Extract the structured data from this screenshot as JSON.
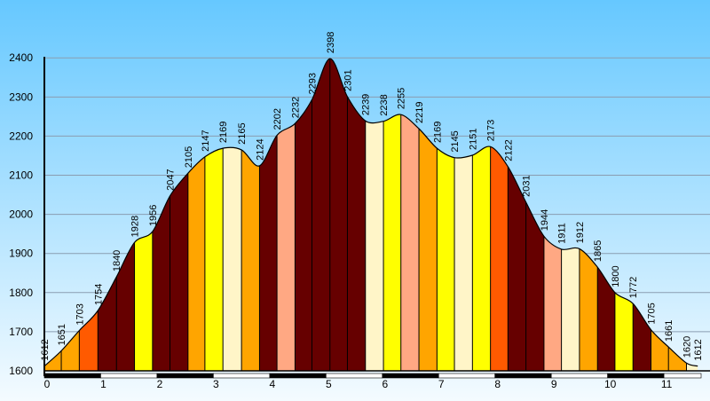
{
  "chart_data": {
    "type": "area",
    "title": "",
    "xlabel": "",
    "ylabel": "",
    "xlim": [
      0,
      11.66
    ],
    "ylim": [
      1600,
      2430
    ],
    "grid": true,
    "legend": "none",
    "colors": {
      "sky_top": "#66c8ff",
      "sky_bottom": "#f4fbff",
      "gridline": "#8a9db0",
      "outline": "#000000",
      "palette": {
        "maroon": "#660000",
        "red_orange": "#ff5a00",
        "yellow": "#ffff00",
        "orange": "#ffa500",
        "cream": "#fff5c8",
        "salmon": "#ffa883"
      }
    },
    "x_ticks": [
      {
        "value": 0,
        "label": "0"
      },
      {
        "value": 1,
        "label": "1"
      },
      {
        "value": 2,
        "label": "2"
      },
      {
        "value": 3,
        "label": "3"
      },
      {
        "value": 4,
        "label": "4"
      },
      {
        "value": 5,
        "label": "5"
      },
      {
        "value": 6,
        "label": "6"
      },
      {
        "value": 7,
        "label": "7"
      },
      {
        "value": 8,
        "label": "8"
      },
      {
        "value": 9,
        "label": "9"
      },
      {
        "value": 10,
        "label": "10"
      },
      {
        "value": 11,
        "label": "11"
      }
    ],
    "y_ticks": [
      {
        "value": 1600,
        "label": "1600"
      },
      {
        "value": 1700,
        "label": "1700"
      },
      {
        "value": 1800,
        "label": "1800"
      },
      {
        "value": 1900,
        "label": "1900"
      },
      {
        "value": 2000,
        "label": "2000"
      },
      {
        "value": 2100,
        "label": "2100"
      },
      {
        "value": 2200,
        "label": "2200"
      },
      {
        "value": 2300,
        "label": "2300"
      },
      {
        "value": 2400,
        "label": "2400"
      }
    ],
    "profile": [
      {
        "x": 0.0,
        "y": 1612
      },
      {
        "x": 0.3,
        "y": 1651
      },
      {
        "x": 0.62,
        "y": 1703
      },
      {
        "x": 0.95,
        "y": 1754
      },
      {
        "x": 1.28,
        "y": 1840
      },
      {
        "x": 1.6,
        "y": 1928
      },
      {
        "x": 1.92,
        "y": 1956
      },
      {
        "x": 2.23,
        "y": 2047
      },
      {
        "x": 2.55,
        "y": 2105
      },
      {
        "x": 2.85,
        "y": 2147
      },
      {
        "x": 3.17,
        "y": 2169
      },
      {
        "x": 3.5,
        "y": 2165
      },
      {
        "x": 3.82,
        "y": 2124
      },
      {
        "x": 4.13,
        "y": 2202
      },
      {
        "x": 4.45,
        "y": 2232
      },
      {
        "x": 4.75,
        "y": 2293
      },
      {
        "x": 5.07,
        "y": 2398
      },
      {
        "x": 5.38,
        "y": 2301
      },
      {
        "x": 5.7,
        "y": 2239
      },
      {
        "x": 6.02,
        "y": 2238
      },
      {
        "x": 6.33,
        "y": 2255
      },
      {
        "x": 6.65,
        "y": 2219
      },
      {
        "x": 6.97,
        "y": 2169
      },
      {
        "x": 7.28,
        "y": 2145
      },
      {
        "x": 7.6,
        "y": 2151
      },
      {
        "x": 7.92,
        "y": 2173
      },
      {
        "x": 8.23,
        "y": 2122
      },
      {
        "x": 8.55,
        "y": 2031
      },
      {
        "x": 8.87,
        "y": 1944
      },
      {
        "x": 9.18,
        "y": 1911
      },
      {
        "x": 9.5,
        "y": 1912
      },
      {
        "x": 9.82,
        "y": 1865
      },
      {
        "x": 10.13,
        "y": 1800
      },
      {
        "x": 10.45,
        "y": 1772
      },
      {
        "x": 10.77,
        "y": 1705
      },
      {
        "x": 11.08,
        "y": 1661
      },
      {
        "x": 11.4,
        "y": 1620
      },
      {
        "x": 11.6,
        "y": 1612
      }
    ],
    "segments": [
      {
        "x0": 0.0,
        "x1": 0.3,
        "color": "#ffa500"
      },
      {
        "x0": 0.3,
        "x1": 0.62,
        "color": "#ffa500"
      },
      {
        "x0": 0.62,
        "x1": 0.95,
        "color": "#ff5a00"
      },
      {
        "x0": 0.95,
        "x1": 1.28,
        "color": "#660000"
      },
      {
        "x0": 1.28,
        "x1": 1.6,
        "color": "#660000"
      },
      {
        "x0": 1.6,
        "x1": 1.92,
        "color": "#ffff00"
      },
      {
        "x0": 1.92,
        "x1": 2.23,
        "color": "#660000"
      },
      {
        "x0": 2.23,
        "x1": 2.55,
        "color": "#660000"
      },
      {
        "x0": 2.55,
        "x1": 2.85,
        "color": "#ffa500"
      },
      {
        "x0": 2.85,
        "x1": 3.17,
        "color": "#ffff00"
      },
      {
        "x0": 3.17,
        "x1": 3.5,
        "color": "#fff5c8"
      },
      {
        "x0": 3.5,
        "x1": 3.82,
        "color": "#ffa500"
      },
      {
        "x0": 3.82,
        "x1": 4.13,
        "color": "#660000"
      },
      {
        "x0": 4.13,
        "x1": 4.45,
        "color": "#ffa883"
      },
      {
        "x0": 4.45,
        "x1": 4.75,
        "color": "#660000"
      },
      {
        "x0": 4.75,
        "x1": 5.07,
        "color": "#660000"
      },
      {
        "x0": 5.07,
        "x1": 5.38,
        "color": "#660000"
      },
      {
        "x0": 5.38,
        "x1": 5.7,
        "color": "#660000"
      },
      {
        "x0": 5.7,
        "x1": 6.02,
        "color": "#fff5c8"
      },
      {
        "x0": 6.02,
        "x1": 6.33,
        "color": "#ffff00"
      },
      {
        "x0": 6.33,
        "x1": 6.65,
        "color": "#ffa883"
      },
      {
        "x0": 6.65,
        "x1": 6.97,
        "color": "#ffa500"
      },
      {
        "x0": 6.97,
        "x1": 7.28,
        "color": "#ffff00"
      },
      {
        "x0": 7.28,
        "x1": 7.6,
        "color": "#fff5c8"
      },
      {
        "x0": 7.6,
        "x1": 7.92,
        "color": "#ffff00"
      },
      {
        "x0": 7.92,
        "x1": 8.23,
        "color": "#ff5a00"
      },
      {
        "x0": 8.23,
        "x1": 8.55,
        "color": "#660000"
      },
      {
        "x0": 8.55,
        "x1": 8.87,
        "color": "#660000"
      },
      {
        "x0": 8.87,
        "x1": 9.18,
        "color": "#ffa883"
      },
      {
        "x0": 9.18,
        "x1": 9.5,
        "color": "#fff5c8"
      },
      {
        "x0": 9.5,
        "x1": 9.82,
        "color": "#ffa500"
      },
      {
        "x0": 9.82,
        "x1": 10.13,
        "color": "#660000"
      },
      {
        "x0": 10.13,
        "x1": 10.45,
        "color": "#ffff00"
      },
      {
        "x0": 10.45,
        "x1": 10.77,
        "color": "#660000"
      },
      {
        "x0": 10.77,
        "x1": 11.08,
        "color": "#ffa500"
      },
      {
        "x0": 11.08,
        "x1": 11.4,
        "color": "#ffa500"
      },
      {
        "x0": 11.4,
        "x1": 11.6,
        "color": "#fff5c8"
      }
    ],
    "data_labels": [
      {
        "x": 0.0,
        "y": 1612,
        "label": "1612"
      },
      {
        "x": 0.3,
        "y": 1651,
        "label": "1651"
      },
      {
        "x": 0.62,
        "y": 1703,
        "label": "1703"
      },
      {
        "x": 0.95,
        "y": 1754,
        "label": "1754"
      },
      {
        "x": 1.28,
        "y": 1840,
        "label": "1840"
      },
      {
        "x": 1.6,
        "y": 1928,
        "label": "1928"
      },
      {
        "x": 1.92,
        "y": 1956,
        "label": "1956"
      },
      {
        "x": 2.23,
        "y": 2047,
        "label": "2047"
      },
      {
        "x": 2.55,
        "y": 2105,
        "label": "2105"
      },
      {
        "x": 2.85,
        "y": 2147,
        "label": "2147"
      },
      {
        "x": 3.17,
        "y": 2169,
        "label": "2169"
      },
      {
        "x": 3.5,
        "y": 2165,
        "label": "2165"
      },
      {
        "x": 3.82,
        "y": 2124,
        "label": "2124"
      },
      {
        "x": 4.13,
        "y": 2202,
        "label": "2202"
      },
      {
        "x": 4.45,
        "y": 2232,
        "label": "2232"
      },
      {
        "x": 4.75,
        "y": 2293,
        "label": "2293"
      },
      {
        "x": 5.07,
        "y": 2398,
        "label": "2398"
      },
      {
        "x": 5.38,
        "y": 2301,
        "label": "2301"
      },
      {
        "x": 5.7,
        "y": 2239,
        "label": "2239"
      },
      {
        "x": 6.02,
        "y": 2238,
        "label": "2238"
      },
      {
        "x": 6.33,
        "y": 2255,
        "label": "2255"
      },
      {
        "x": 6.65,
        "y": 2219,
        "label": "2219"
      },
      {
        "x": 6.97,
        "y": 2169,
        "label": "2169"
      },
      {
        "x": 7.28,
        "y": 2145,
        "label": "2145"
      },
      {
        "x": 7.6,
        "y": 2151,
        "label": "2151"
      },
      {
        "x": 7.92,
        "y": 2173,
        "label": "2173"
      },
      {
        "x": 8.23,
        "y": 2122,
        "label": "2122"
      },
      {
        "x": 8.55,
        "y": 2031,
        "label": "2031"
      },
      {
        "x": 8.87,
        "y": 1944,
        "label": "1944"
      },
      {
        "x": 9.18,
        "y": 1911,
        "label": "1911"
      },
      {
        "x": 9.5,
        "y": 1912,
        "label": "1912"
      },
      {
        "x": 9.82,
        "y": 1865,
        "label": "1865"
      },
      {
        "x": 10.13,
        "y": 1800,
        "label": "1800"
      },
      {
        "x": 10.45,
        "y": 1772,
        "label": "1772"
      },
      {
        "x": 10.77,
        "y": 1705,
        "label": "1705"
      },
      {
        "x": 11.08,
        "y": 1661,
        "label": "1661"
      },
      {
        "x": 11.4,
        "y": 1620,
        "label": "1620"
      },
      {
        "x": 11.6,
        "y": 1612,
        "label": "1612"
      }
    ]
  }
}
